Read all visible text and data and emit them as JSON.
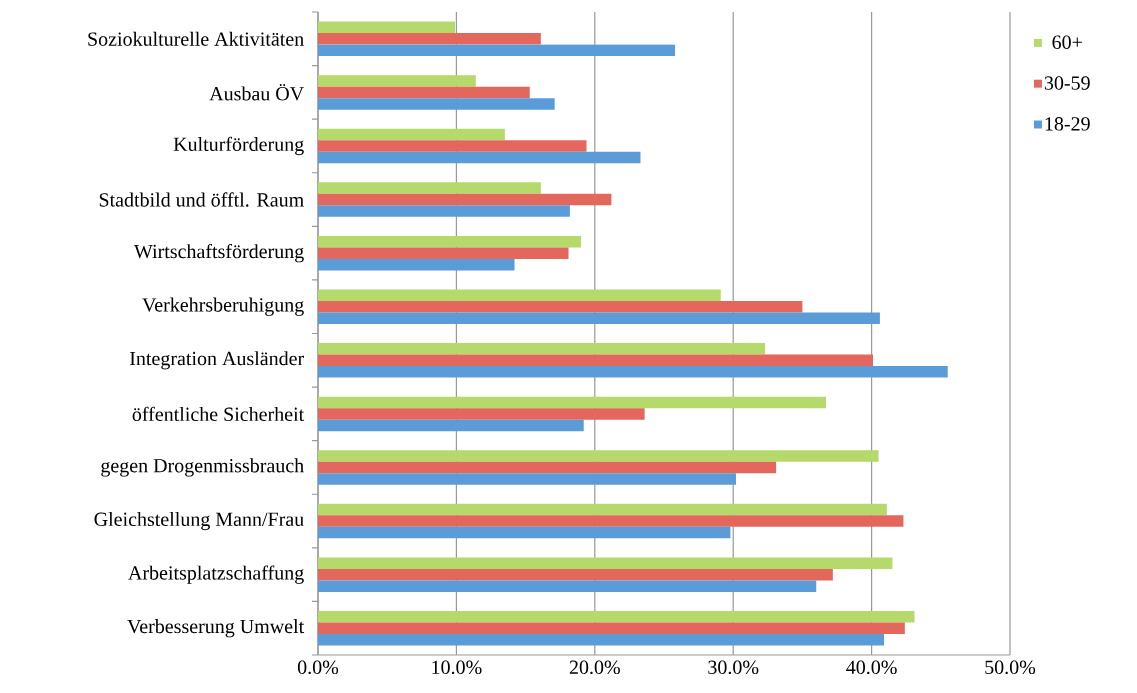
{
  "chart_data": {
    "type": "bar",
    "orientation": "horizontal",
    "categories": [
      "Soziokulturelle Aktivitäten",
      "Ausbau ÖV",
      "Kulturförderung",
      "Stadtbild und öfftl. Raum",
      "Wirtschaftsförderung",
      "Verkehrsberuhigung",
      "Integration Ausländer",
      "öffentliche Sicherheit",
      "gegen Drogenmissbrauch",
      "Gleichstellung Mann/Frau",
      "Arbeitsplatzschaffung",
      "Verbesserung Umwelt"
    ],
    "series": [
      {
        "name": "60+",
        "color": "#b5d96a",
        "values": [
          9.9,
          11.4,
          13.5,
          16.1,
          19.0,
          29.1,
          32.3,
          36.7,
          40.5,
          41.1,
          41.5,
          43.1
        ]
      },
      {
        "name": "30-59",
        "color": "#e4675e",
        "values": [
          16.1,
          15.3,
          19.4,
          21.2,
          18.1,
          35.0,
          40.1,
          23.6,
          33.1,
          42.3,
          37.2,
          42.4
        ]
      },
      {
        "name": "18-29",
        "color": "#5b9bd8",
        "values": [
          25.8,
          17.1,
          23.3,
          18.2,
          14.2,
          40.6,
          45.5,
          19.2,
          30.2,
          29.8,
          36.0,
          40.9
        ]
      }
    ],
    "xlim": [
      0,
      50
    ],
    "xticks": [
      {
        "value": 0,
        "label": "0.0%"
      },
      {
        "value": 10,
        "label": "10.0%"
      },
      {
        "value": 20,
        "label": "20.0%"
      },
      {
        "value": 30,
        "label": "30.0%"
      },
      {
        "value": 40,
        "label": "40.0%"
      },
      {
        "value": 50,
        "label": "50.0%"
      }
    ],
    "grid": "x",
    "legend": "top right"
  }
}
